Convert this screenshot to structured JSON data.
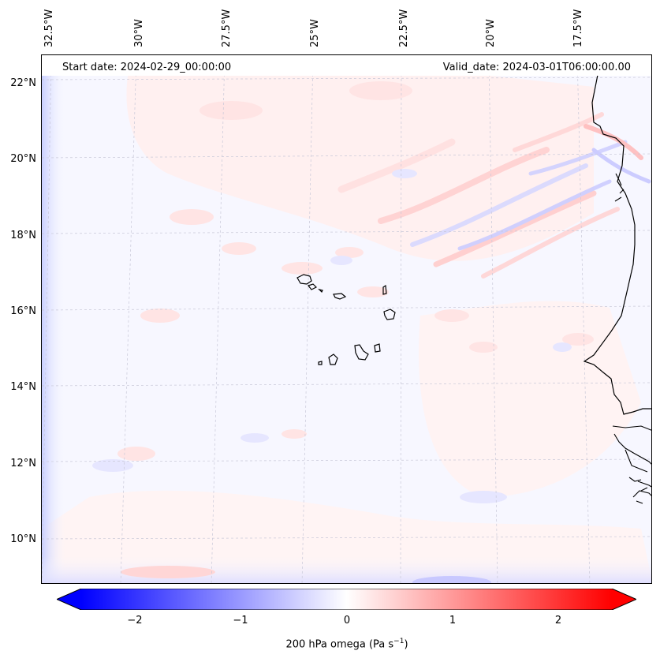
{
  "header": {
    "start_date": "Start date: 2024-02-29_00:00:00",
    "valid_date": "Valid_date: 2024-03-01T06:00:00.00"
  },
  "longitude_labels": [
    "32.5°W",
    "30°W",
    "27.5°W",
    "25°W",
    "22.5°W",
    "20°W",
    "17.5°W"
  ],
  "latitude_labels": [
    "22°N",
    "20°N",
    "18°N",
    "16°N",
    "14°N",
    "12°N",
    "10°N"
  ],
  "colorbar": {
    "ticks": [
      "−2",
      "−1",
      "0",
      "1",
      "2"
    ],
    "label_text": "200 hPa omega (Pa s",
    "label_sup": "−1",
    "label_close": ")",
    "min_color": "#0000ff",
    "mid_color": "#ffffff",
    "max_color": "#ff0000"
  },
  "field_colors": {
    "background": "#f7f7ff",
    "positive_light": "#ffe3e3",
    "negative_light": "#e3e3ff",
    "coastline": "#000000",
    "grid": "#c8c8d8"
  }
}
